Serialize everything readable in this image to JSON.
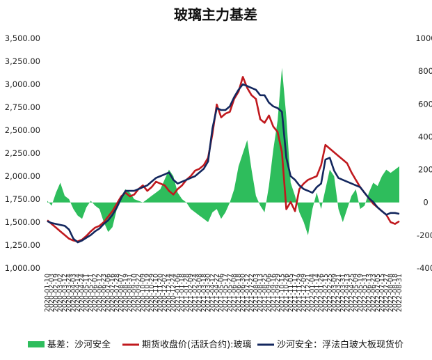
{
  "chart_data": {
    "type": "area",
    "title": "玻璃主力基差",
    "left_axis": {
      "ylim": [
        1000,
        3500
      ],
      "ticks": [
        "1,000.00",
        "1,250.00",
        "1,500.00",
        "1,750.00",
        "2,000.00",
        "2,250.00",
        "2,500.00",
        "2,750.00",
        "3,000.00",
        "3,250.00",
        "3,500.00"
      ]
    },
    "right_axis": {
      "ylim": [
        -400,
        1000
      ],
      "ticks": [
        "-400",
        "-200",
        "0",
        "200",
        "400",
        "600",
        "800",
        "1000"
      ]
    },
    "x": [
      "2020-01-10",
      "2020-02-03",
      "2020-02-19",
      "2020-03-02",
      "2020-03-12",
      "2020-03-24",
      "2020-04-03",
      "2020-04-14",
      "2020-04-24",
      "2020-05-11",
      "2020-05-21",
      "2020-06-02",
      "2020-06-12",
      "2020-06-23",
      "2020-07-06",
      "2020-07-16",
      "2020-07-28",
      "2020-08-07",
      "2020-08-19",
      "2020-08-31",
      "2020-09-10",
      "2020-09-22",
      "2020-10-09",
      "2020-10-19",
      "2020-10-29",
      "2020-11-10",
      "2020-11-20",
      "2020-12-02",
      "2020-12-14",
      "2020-12-24",
      "2021-01-06",
      "2021-01-18",
      "2021-01-28",
      "2021-02-09",
      "2021-02-24",
      "2021-03-08",
      "2021-03-18",
      "2021-03-30",
      "2021-04-12",
      "2021-04-22",
      "2021-05-06",
      "2021-05-17",
      "2021-05-27",
      "2021-06-08",
      "2021-06-18",
      "2021-06-30",
      "2021-07-12",
      "2021-07-22",
      "2021-08-03",
      "2021-08-13",
      "2021-08-25",
      "2021-09-06",
      "2021-09-16",
      "2021-09-29",
      "2021-10-15",
      "2021-10-26",
      "2021-11-05",
      "2021-11-17",
      "2021-11-29",
      "2021-12-09",
      "2021-12-21",
      "2022-01-04",
      "2022-01-14",
      "2022-01-26",
      "2022-02-15",
      "2022-02-25",
      "2022-03-09",
      "2022-03-21",
      "2022-03-31",
      "2022-04-13",
      "2022-04-25",
      "2022-05-09",
      "2022-05-19",
      "2022-05-31",
      "2022-06-13",
      "2022-06-23",
      "2022-07-05",
      "2022-07-15",
      "2022-07-27",
      "2022-08-08",
      "2022-08-18",
      "2022-08-31"
    ],
    "xtick_labels": [
      "2020-01-10",
      "2020-02-03",
      "2020-02-19",
      "2020-03-02",
      "2020-03-12",
      "2020-03-24",
      "2020-04-03",
      "2020-04-14",
      "2020-04-24",
      "2020-05-11",
      "2020-05-21",
      "2020-06-02",
      "2020-06-12",
      "2020-06-23",
      "2020-07-06",
      "2020-07-16",
      "2020-07-28",
      "2020-08-07",
      "2020-08-19",
      "2020-08-31",
      "2020-09-10",
      "2020-09-22",
      "2020-10-09",
      "2020-10-19",
      "2020-10-29",
      "2020-11-10",
      "2020-11-20",
      "2020-12-02",
      "2020-12-14",
      "2020-12-24",
      "2021-01-06",
      "2021-01-18",
      "2021-01-28",
      "2021-02-09",
      "2021-02-24",
      "2021-03-08",
      "2021-03-18",
      "2021-03-30",
      "2021-04-12",
      "2021-04-22",
      "2021-05-06",
      "2021-05-17",
      "2021-05-27",
      "2021-06-08",
      "2021-06-18",
      "2021-06-30",
      "2021-07-12",
      "2021-07-22",
      "2021-08-03",
      "2021-08-13",
      "2021-08-25",
      "2021-09-06",
      "2021-09-16",
      "2021-09-29",
      "2021-10-15",
      "2021-10-26",
      "2021-11-05",
      "2021-11-17",
      "2021-11-29",
      "2021-12-09",
      "2021-12-21",
      "2022-01-04",
      "2022-01-14",
      "2022-01-26",
      "2022-02-15",
      "2022-02-25",
      "2022-03-09",
      "2022-03-21",
      "2022-03-31",
      "2022-04-13",
      "2022-04-25",
      "2022-05-09",
      "2022-05-19",
      "2022-05-31",
      "2022-06-13",
      "2022-06-23",
      "2022-07-05",
      "2022-07-15",
      "2022-07-27",
      "2022-08-08",
      "2022-08-18",
      "2022-08-31"
    ],
    "series": [
      {
        "name": "基差：沙河安全",
        "kind": "area",
        "axis": "right",
        "color": "#2ebd5c",
        "values": [
          10,
          -20,
          60,
          120,
          40,
          20,
          -40,
          -80,
          -100,
          -30,
          10,
          -20,
          -40,
          -120,
          -180,
          -150,
          -40,
          40,
          80,
          60,
          20,
          10,
          0,
          20,
          40,
          60,
          80,
          140,
          200,
          160,
          60,
          20,
          0,
          -40,
          -60,
          -80,
          -100,
          -120,
          -60,
          -40,
          -100,
          -60,
          0,
          80,
          220,
          300,
          380,
          200,
          40,
          -20,
          -60,
          100,
          320,
          500,
          820,
          520,
          120,
          40,
          -60,
          -120,
          -200,
          -40,
          60,
          -40,
          80,
          200,
          160,
          -40,
          -120,
          -40,
          40,
          80,
          -40,
          -20,
          60,
          120,
          100,
          160,
          200,
          180,
          200,
          220
        ]
      },
      {
        "name": "期货收盘价(活跃合约):玻璃",
        "kind": "line",
        "axis": "left",
        "color": "#c0191e",
        "values": [
          1520,
          1480,
          1440,
          1400,
          1360,
          1320,
          1300,
          1290,
          1310,
          1350,
          1400,
          1440,
          1460,
          1500,
          1560,
          1620,
          1700,
          1780,
          1820,
          1780,
          1800,
          1860,
          1900,
          1840,
          1880,
          1940,
          1920,
          1900,
          1840,
          1800,
          1860,
          1900,
          1960,
          2000,
          2060,
          2080,
          2120,
          2200,
          2460,
          2780,
          2640,
          2680,
          2700,
          2840,
          2920,
          3080,
          2960,
          2880,
          2840,
          2620,
          2580,
          2660,
          2540,
          2480,
          2260,
          1640,
          1720,
          1620,
          1860,
          1920,
          1960,
          1980,
          2000,
          2120,
          2340,
          2300,
          2260,
          2220,
          2180,
          2140,
          2040,
          1960,
          1880,
          1820,
          1760,
          1700,
          1660,
          1620,
          1580,
          1500,
          1480,
          1510
        ]
      },
      {
        "name": "沙河安全：浮法白玻大板现货价",
        "kind": "line",
        "axis": "left",
        "color": "#13275e",
        "values": [
          1510,
          1490,
          1480,
          1470,
          1460,
          1420,
          1320,
          1280,
          1300,
          1330,
          1360,
          1400,
          1430,
          1480,
          1520,
          1580,
          1660,
          1760,
          1840,
          1840,
          1840,
          1860,
          1880,
          1900,
          1940,
          1980,
          2000,
          2020,
          2040,
          1960,
          1920,
          1940,
          1960,
          1980,
          2000,
          2040,
          2080,
          2160,
          2520,
          2740,
          2720,
          2720,
          2760,
          2860,
          2940,
          3000,
          2980,
          2960,
          2940,
          2880,
          2880,
          2800,
          2760,
          2740,
          2700,
          2200,
          2000,
          1960,
          1900,
          1860,
          1840,
          1820,
          1880,
          1920,
          2180,
          2200,
          2060,
          1980,
          1960,
          1940,
          1920,
          1900,
          1880,
          1820,
          1760,
          1720,
          1660,
          1620,
          1580,
          1600,
          1600,
          1590
        ]
      }
    ],
    "legend_position": "bottom",
    "grid": false
  }
}
